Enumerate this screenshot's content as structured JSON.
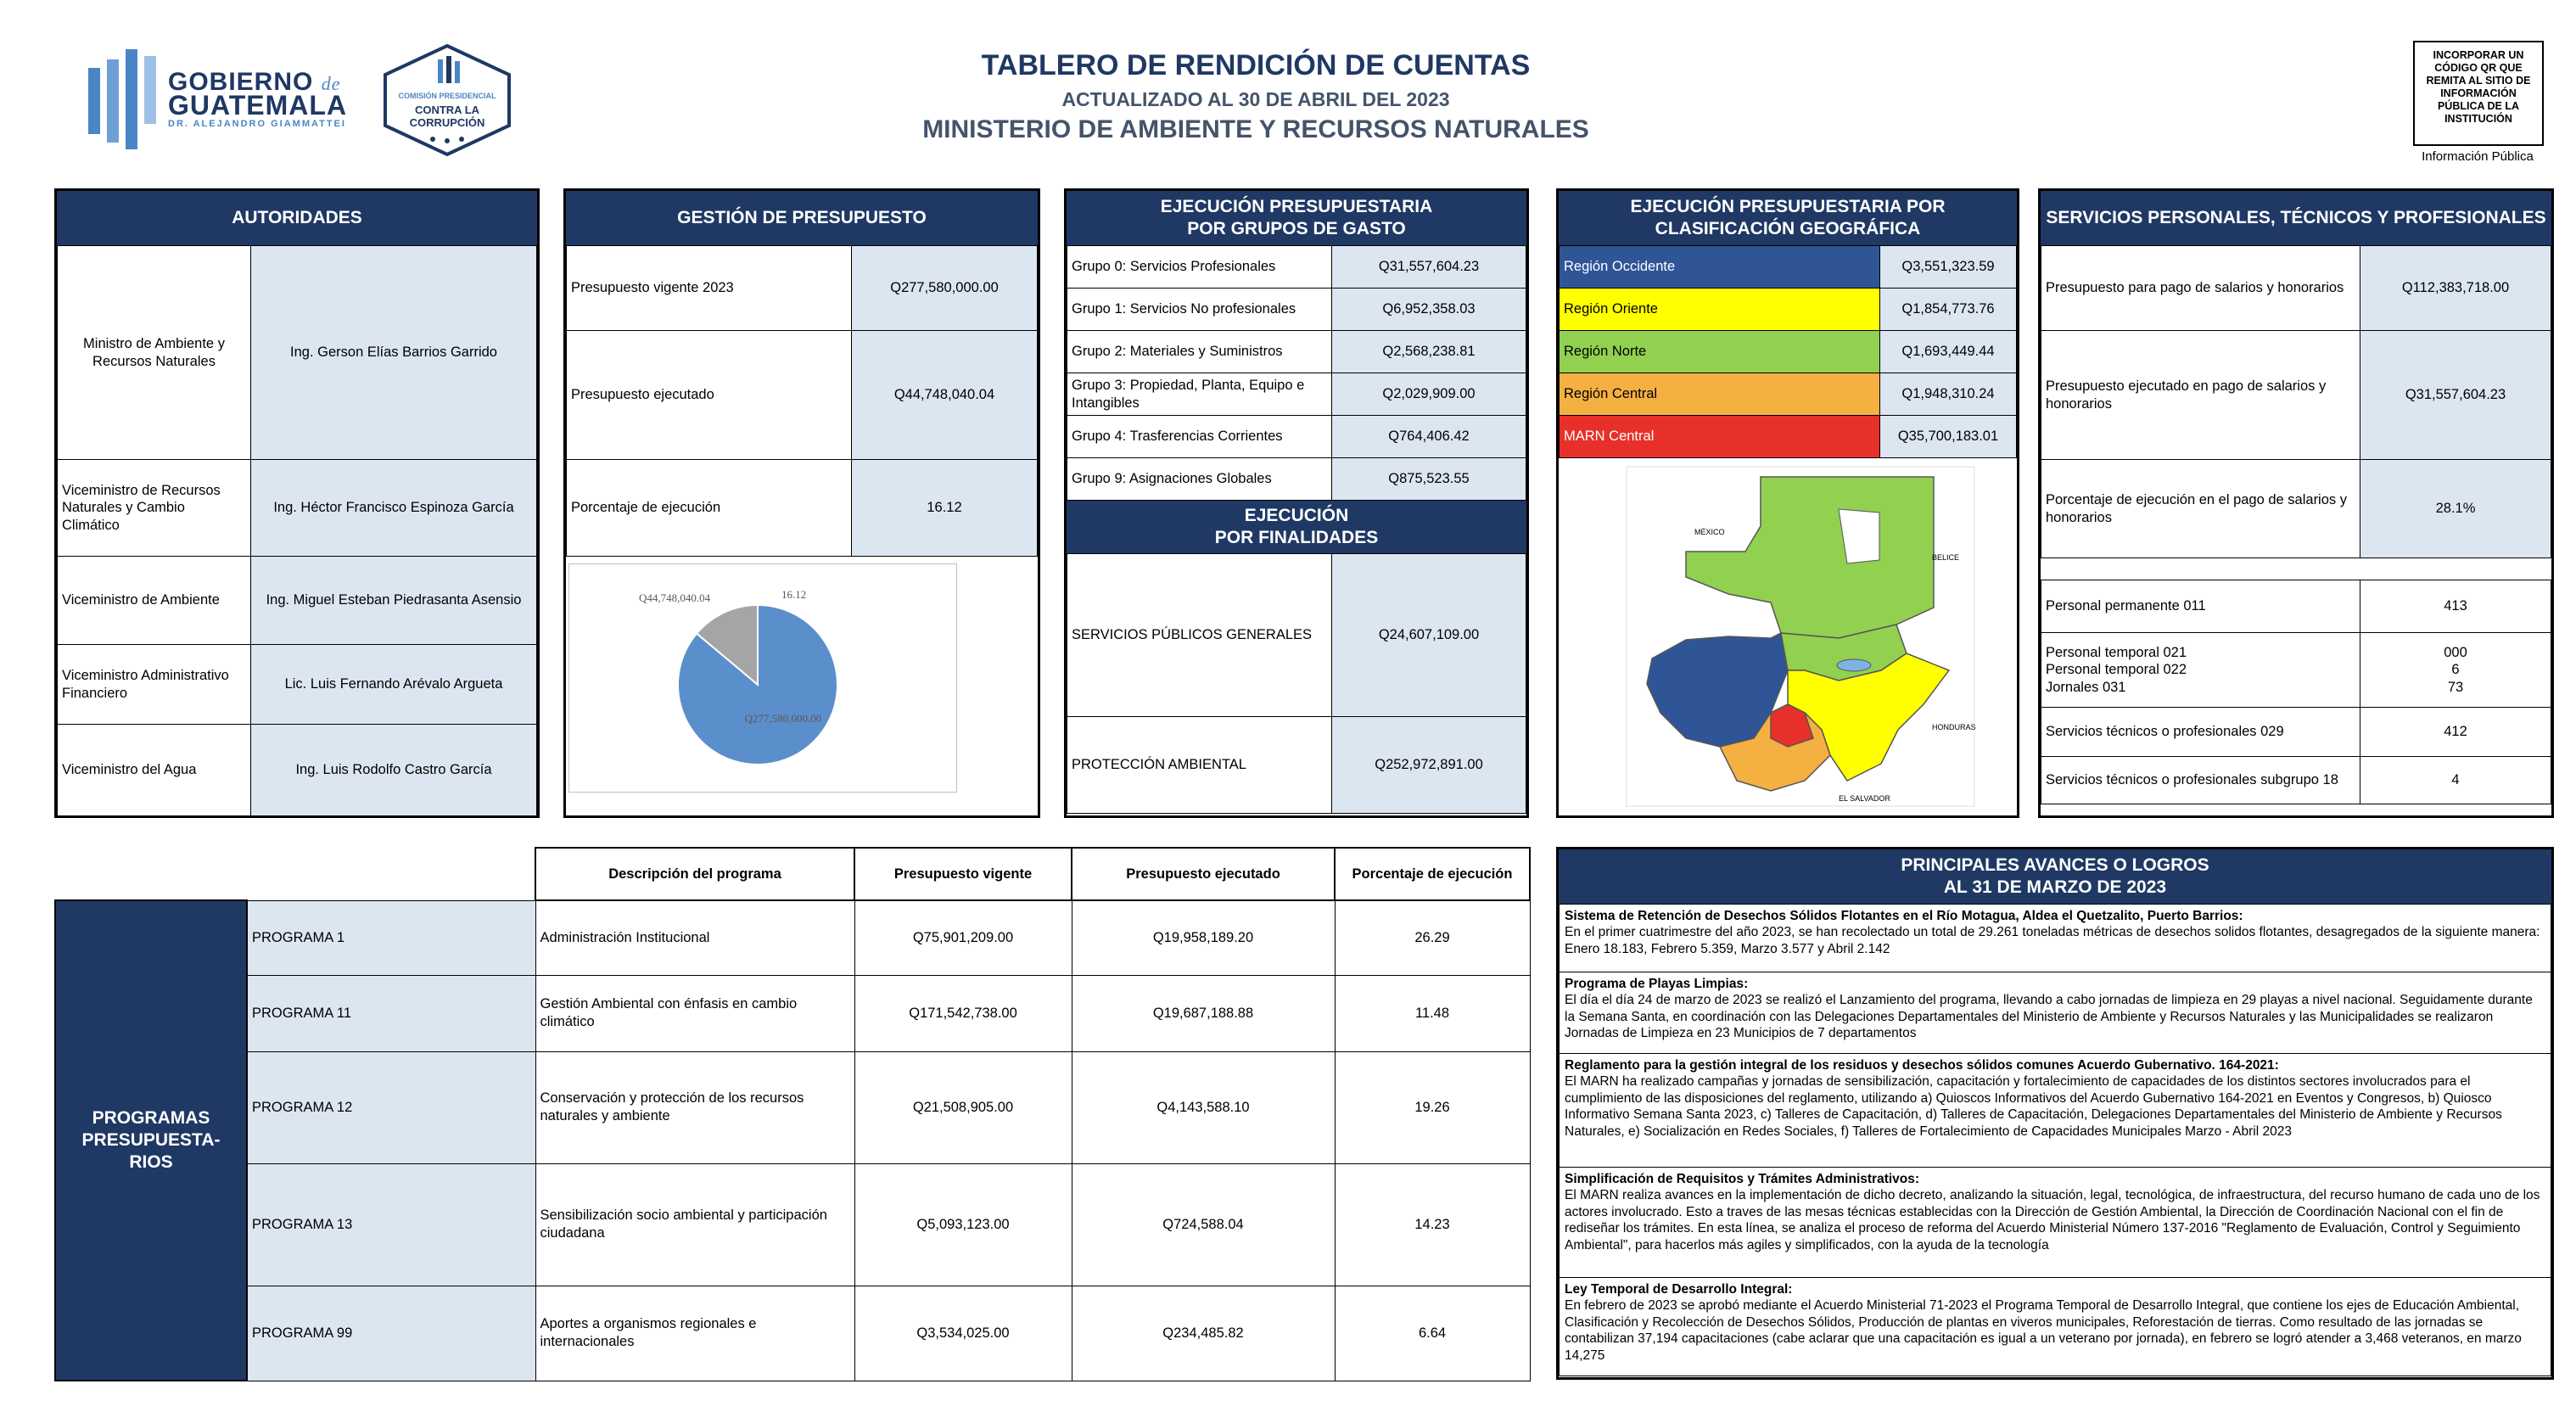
{
  "header": {
    "title": "TABLERO DE RENDICIÓN DE CUENTAS",
    "updated": "ACTUALIZADO AL 30 DE ABRIL DEL 2023",
    "ministry": "MINISTERIO DE AMBIENTE Y RECURSOS NATURALES",
    "logo_gob_line1": "GOBIERNO",
    "logo_gob_de": "de",
    "logo_gob_line2": "GUATEMALA",
    "logo_gob_sub": "DR. ALEJANDRO GIAMMATTEI",
    "logo_cpc_line1": "COMISIÓN PRESIDENCIAL",
    "logo_cpc_line2": "CONTRA LA CORRUPCIÓN",
    "qr_note": "INCORPORAR UN CÓDIGO QR QUE REMITA AL SITIO DE INFORMACIÓN PÚBLICA DE LA INSTITUCIÓN",
    "qr_label": "Información Pública"
  },
  "autoridades": {
    "title": "AUTORIDADES",
    "rows": [
      {
        "cargo": "Ministro de Ambiente y Recursos Naturales",
        "nombre": "Ing. Gerson Elías Barrios Garrido"
      },
      {
        "cargo": "Viceministro de Recursos Naturales y Cambio Climático",
        "nombre": "Ing. Héctor Francisco Espinoza García"
      },
      {
        "cargo": "Viceministro de Ambiente",
        "nombre": "Ing. Miguel Esteban Piedrasanta Asensio"
      },
      {
        "cargo": "Viceministro Administrativo Financiero",
        "nombre": "Lic. Luis Fernando Arévalo Argueta"
      },
      {
        "cargo": "Viceministro del Agua",
        "nombre": "Ing. Luis Rodolfo Castro García"
      }
    ]
  },
  "gestion": {
    "title": "GESTIÓN DE PRESUPUESTO",
    "rows": [
      {
        "label": "Presupuesto vigente 2023",
        "value": "Q277,580,000.00"
      },
      {
        "label": "Presupuesto ejecutado",
        "value": "Q44,748,040.04"
      },
      {
        "label": "Porcentaje de ejecución",
        "value": "16.12"
      }
    ]
  },
  "chart_data": {
    "type": "pie",
    "slices": [
      {
        "label": "Q277,580,000.00",
        "value": 277580000.0,
        "color": "#5b8fcb"
      },
      {
        "label": "Q44,748,040.04",
        "value": 44748040.04,
        "color": "#a5a5a5"
      }
    ],
    "extra_label": "16.12"
  },
  "grupos": {
    "title_line1": "EJECUCIÓN PRESUPUESTARIA",
    "title_line2": "POR GRUPOS DE GASTO",
    "rows": [
      {
        "label": "Grupo 0: Servicios Profesionales",
        "value": "Q31,557,604.23"
      },
      {
        "label": "Grupo 1: Servicios No profesionales",
        "value": "Q6,952,358.03"
      },
      {
        "label": "Grupo 2: Materiales y Suministros",
        "value": "Q2,568,238.81"
      },
      {
        "label": "Grupo 3: Propiedad, Planta, Equipo e Intangibles",
        "value": "Q2,029,909.00"
      },
      {
        "label": "Grupo 4: Trasferencias Corrientes",
        "value": "Q764,406.42"
      },
      {
        "label": "Grupo 9: Asignaciones Globales",
        "value": "Q875,523.55"
      }
    ]
  },
  "finalidades": {
    "title_line1": "EJECUCIÓN",
    "title_line2": "POR FINALIDADES",
    "rows": [
      {
        "label": "SERVICIOS PÚBLICOS GENERALES",
        "value": "Q24,607,109.00"
      },
      {
        "label": "PROTECCIÓN AMBIENTAL",
        "value": "Q252,972,891.00"
      }
    ]
  },
  "geografica": {
    "title_line1": "EJECUCIÓN PRESUPUESTARIA POR",
    "title_line2": "CLASIFICACIÓN GEOGRÁFICA",
    "rows": [
      {
        "label": "Región Occidente",
        "value": "Q3,551,323.59",
        "color": "#2f5597",
        "text": "#ffffff"
      },
      {
        "label": "Región Oriente",
        "value": "Q1,854,773.76",
        "color": "#ffff00",
        "text": "#000000"
      },
      {
        "label": "Región Norte",
        "value": "Q1,693,449.44",
        "color": "#92d050",
        "text": "#000000"
      },
      {
        "label": "Región Central",
        "value": "Q1,948,310.24",
        "color": "#f4b041",
        "text": "#000000"
      },
      {
        "label": "MARN Central",
        "value": "Q35,700,183.01",
        "color": "#e8302a",
        "text": "#ffffff"
      }
    ],
    "map_labels": {
      "mexico": "MÉXICO",
      "belice": "BELICE",
      "honduras": "HONDURAS",
      "el_salvador": "EL SALVADOR"
    }
  },
  "servicios": {
    "title": "SERVICIOS PERSONALES, TÉCNICOS Y PROFESIONALES",
    "rows": [
      {
        "label": "Presupuesto para pago de salarios y honorarios",
        "value": "Q112,383,718.00"
      },
      {
        "label": "Presupuesto ejecutado en pago de salarios y honorarios",
        "value": "Q31,557,604.23"
      },
      {
        "label": "Porcentaje de ejecución en el pago de salarios y honorarios",
        "value": "28.1%"
      }
    ],
    "personal": [
      {
        "label": "Personal permanente 011",
        "value": "413"
      },
      {
        "label_lines": [
          "Personal temporal 021",
          "Personal temporal 022",
          "Jornales 031"
        ],
        "value_lines": [
          "000",
          "6",
          "73"
        ]
      },
      {
        "label": "Servicios técnicos o profesionales 029",
        "value": "412"
      },
      {
        "label": "Servicios técnicos o profesionales subgrupo 18",
        "value": "4"
      }
    ]
  },
  "programas": {
    "side_label_line1": "PROGRAMAS",
    "side_label_line2": "PRESUPUESTA-",
    "side_label_line3": "RIOS",
    "headers": [
      "Descripción del programa",
      "Presupuesto vigente",
      "Presupuesto ejecutado",
      "Porcentaje de ejecución"
    ],
    "rows": [
      {
        "name": "PROGRAMA 1",
        "desc": "Administración Institucional",
        "vigente": "Q75,901,209.00",
        "ejecutado": "Q19,958,189.20",
        "pct": "26.29"
      },
      {
        "name": "PROGRAMA 11",
        "desc": "Gestión Ambiental con énfasis en cambio climático",
        "vigente": "Q171,542,738.00",
        "ejecutado": "Q19,687,188.88",
        "pct": "11.48"
      },
      {
        "name": "PROGRAMA 12",
        "desc": "Conservación y protección de los recursos naturales y ambiente",
        "vigente": "Q21,508,905.00",
        "ejecutado": "Q4,143,588.10",
        "pct": "19.26"
      },
      {
        "name": "PROGRAMA 13",
        "desc": "Sensibilización socio ambiental y participación ciudadana",
        "vigente": "Q5,093,123.00",
        "ejecutado": "Q724,588.04",
        "pct": "14.23"
      },
      {
        "name": "PROGRAMA 99",
        "desc": "Aportes a organismos regionales e internacionales",
        "vigente": "Q3,534,025.00",
        "ejecutado": "Q234,485.82",
        "pct": "6.64"
      }
    ]
  },
  "logros": {
    "title_line1": "PRINCIPALES AVANCES O LOGROS",
    "title_line2": "AL 31 DE MARZO DE 2023",
    "items": [
      {
        "heading": "Sistema de Retención de Desechos Sólidos Flotantes en el Río Motagua, Aldea el Quetzalito, Puerto Barrios:",
        "body": "En el primer cuatrimestre del año 2023, se han recolectado un total de 29.261 toneladas métricas de desechos solidos flotantes, desagregados de la siguiente manera: Enero 18.183, Febrero 5.359, Marzo 3.577 y Abril 2.142"
      },
      {
        "heading": "Programa de Playas Limpias:",
        "body": "El día el día 24 de marzo de 2023 se realizó el Lanzamiento del programa, llevando a cabo jornadas de limpieza en 29 playas a nivel nacional. Seguidamente durante la Semana Santa, en coordinación con las Delegaciones Departamentales del Ministerio de Ambiente y Recursos Naturales y las Municipalidades se realizaron Jornadas de Limpieza en 23 Municipios de 7 departamentos"
      },
      {
        "heading": "Reglamento para la gestión integral de los residuos y desechos sólidos comunes Acuerdo Gubernativo. 164-2021:",
        "body": "El MARN ha realizado campañas y jornadas de sensibilización, capacitación y fortalecimiento de capacidades de los distintos sectores involucrados para el cumplimiento de las disposiciones del reglamento, utilizando a) Quioscos Informativos del Acuerdo Gubernativo 164-2021 en Eventos y Congresos, b) Quiosco Informativo Semana Santa 2023, c) Talleres de Capacitación, d) Talleres de Capacitación, Delegaciones Departamentales del Ministerio de Ambiente y Recursos Naturales, e) Socialización en Redes Sociales, f) Talleres de Fortalecimiento de Capacidades Municipales Marzo - Abril 2023"
      },
      {
        "heading": "Simplificación de Requisitos y Trámites Administrativos:",
        "body": "El MARN realiza avances en la implementación de dicho decreto, analizando la situación, legal, tecnológica, de infraestructura, del recurso humano de cada uno de los actores involucrado. Esto a traves de las mesas técnicas establecidas con la Dirección de Gestión Ambiental, la Dirección de Coordinación Nacional con el fin de rediseñar los trámites.  En esta línea, se analiza el proceso de reforma del Acuerdo Ministerial Número 137-2016 \"Reglamento de Evaluación, Control y Seguimiento Ambiental\", para hacerlos más agiles y simplificados, con la ayuda de la tecnología"
      },
      {
        "heading": "Ley Temporal de Desarrollo Integral:",
        "body": "En febrero de 2023 se aprobó mediante el Acuerdo Ministerial 71-2023 el Programa Temporal de Desarrollo Integral, que contiene los ejes de Educación Ambiental, Clasificación y Recolección de Desechos Sólidos, Producción de plantas en viveros municipales, Reforestación de tierras. Como resultado de las jornadas se contabilizan 37,194 capacitaciones (cabe aclarar que una capacitación es igual a un veterano por jornada), en febrero se logró atender a 3,468 veteranos, en marzo 14,275"
      }
    ]
  }
}
